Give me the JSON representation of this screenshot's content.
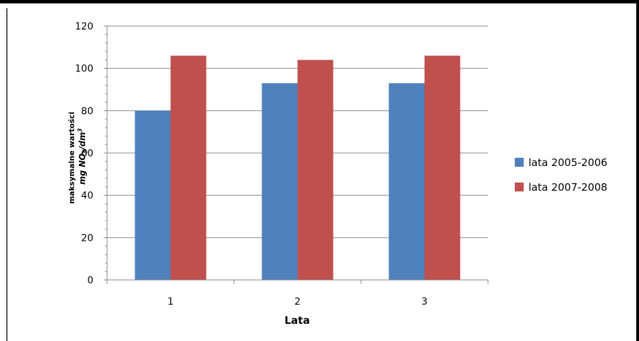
{
  "chart_data": {
    "type": "bar",
    "categories": [
      "1",
      "2",
      "3"
    ],
    "series": [
      {
        "name": "lata 2005-2006",
        "color": "#4F81BD",
        "values": [
          80,
          93,
          93
        ]
      },
      {
        "name": "lata 2007-2008",
        "color": "#C0504D",
        "values": [
          106,
          104,
          106
        ]
      }
    ],
    "xlabel": "Lata",
    "ylabel": {
      "line1": "maksymalne  wartości",
      "line2_prefix": "mg NO",
      "line2_sub": "3",
      "line2_mid": "/dm",
      "line2_sup": "3"
    },
    "ylim": [
      0,
      120
    ],
    "yticks": [
      "0",
      "20",
      "40",
      "60",
      "80",
      "100",
      "120"
    ],
    "grid": true,
    "legend_position": "right"
  }
}
